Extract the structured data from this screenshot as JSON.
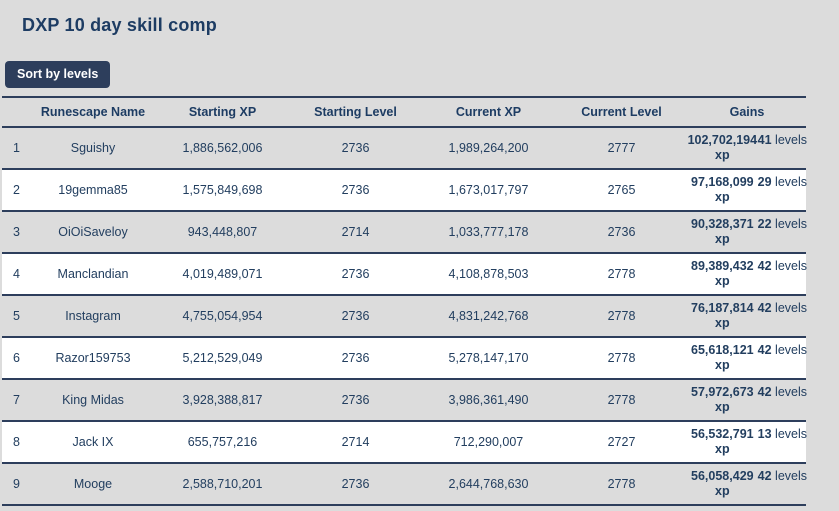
{
  "page": {
    "title": "DXP 10 day skill comp",
    "sort_button_label": "Sort by levels",
    "background_color": "#dcdcdc",
    "accent_color": "#2d3e5c"
  },
  "table": {
    "headers": [
      "Runescape Name",
      "Starting XP",
      "Starting Level",
      "Current XP",
      "Current Level",
      "Gains"
    ],
    "xp_suffix": "xp",
    "levels_suffix": "levels",
    "rows": [
      {
        "rank": "1",
        "name": "Sguishy",
        "starting_xp": "1,886,562,006",
        "starting_level": "2736",
        "current_xp": "1,989,264,200",
        "current_level": "2777",
        "gained_xp": "102,702,194",
        "gained_levels": "41"
      },
      {
        "rank": "2",
        "name": "19gemma85",
        "starting_xp": "1,575,849,698",
        "starting_level": "2736",
        "current_xp": "1,673,017,797",
        "current_level": "2765",
        "gained_xp": "97,168,099",
        "gained_levels": "29"
      },
      {
        "rank": "3",
        "name": "OiOiSaveloy",
        "starting_xp": "943,448,807",
        "starting_level": "2714",
        "current_xp": "1,033,777,178",
        "current_level": "2736",
        "gained_xp": "90,328,371",
        "gained_levels": "22"
      },
      {
        "rank": "4",
        "name": "Manclandian",
        "starting_xp": "4,019,489,071",
        "starting_level": "2736",
        "current_xp": "4,108,878,503",
        "current_level": "2778",
        "gained_xp": "89,389,432",
        "gained_levels": "42"
      },
      {
        "rank": "5",
        "name": "Instagram",
        "starting_xp": "4,755,054,954",
        "starting_level": "2736",
        "current_xp": "4,831,242,768",
        "current_level": "2778",
        "gained_xp": "76,187,814",
        "gained_levels": "42"
      },
      {
        "rank": "6",
        "name": "Razor159753",
        "starting_xp": "5,212,529,049",
        "starting_level": "2736",
        "current_xp": "5,278,147,170",
        "current_level": "2778",
        "gained_xp": "65,618,121",
        "gained_levels": "42"
      },
      {
        "rank": "7",
        "name": "King Midas",
        "starting_xp": "3,928,388,817",
        "starting_level": "2736",
        "current_xp": "3,986,361,490",
        "current_level": "2778",
        "gained_xp": "57,972,673",
        "gained_levels": "42"
      },
      {
        "rank": "8",
        "name": "Jack IX",
        "starting_xp": "655,757,216",
        "starting_level": "2714",
        "current_xp": "712,290,007",
        "current_level": "2727",
        "gained_xp": "56,532,791",
        "gained_levels": "13"
      },
      {
        "rank": "9",
        "name": "Mooge",
        "starting_xp": "2,588,710,201",
        "starting_level": "2736",
        "current_xp": "2,644,768,630",
        "current_level": "2778",
        "gained_xp": "56,058,429",
        "gained_levels": "42"
      }
    ]
  }
}
